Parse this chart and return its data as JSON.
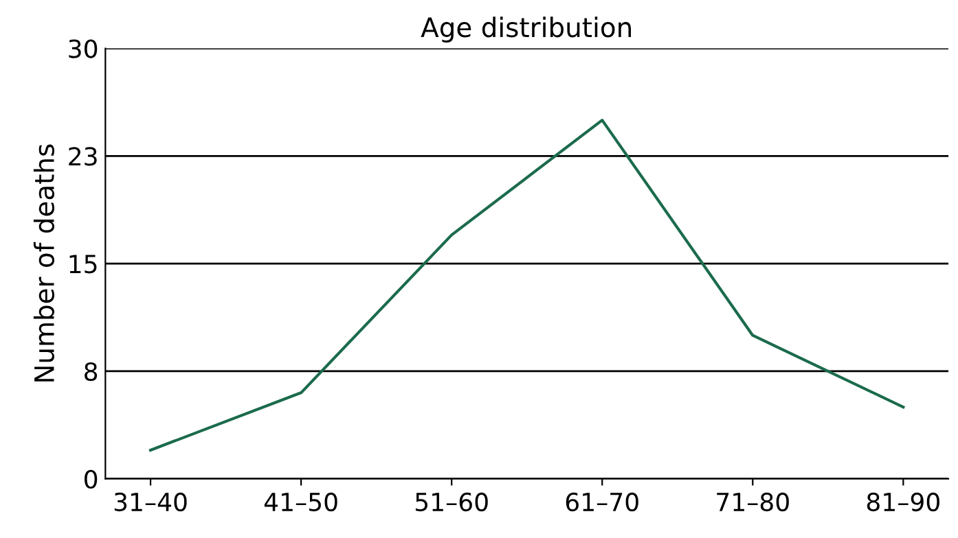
{
  "chart_data": {
    "type": "line",
    "title": "Age distribution",
    "ylabel": "Number of deaths",
    "categories": [
      "31–40",
      "41–50",
      "51–60",
      "61–70",
      "71–80",
      "81–90"
    ],
    "series": [
      {
        "color": "#1b6b4c",
        "values": [
          2,
          6,
          17,
          25,
          10,
          5
        ]
      }
    ],
    "ylim": [
      0,
      30
    ],
    "yticks": [
      0,
      {
        "value": 7.5,
        "label": "8"
      },
      15,
      {
        "value": 22.5,
        "label": "23"
      },
      30
    ],
    "grid": "y",
    "marker": "none",
    "line_style": "solid"
  }
}
